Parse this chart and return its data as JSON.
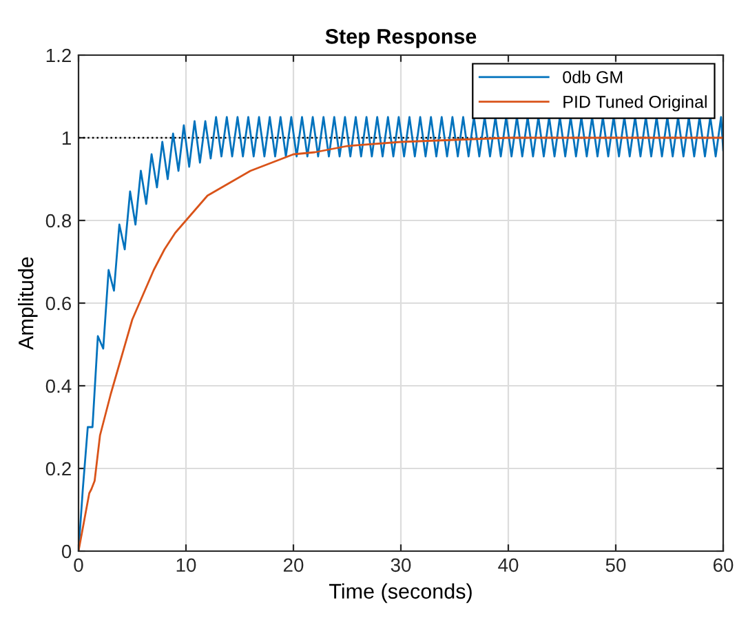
{
  "chart_data": {
    "type": "line",
    "title": "Step Response",
    "xlabel": "Time (seconds)",
    "ylabel": "Amplitude",
    "xlim": [
      0,
      60
    ],
    "xticks": [
      0,
      10,
      20,
      30,
      40,
      50,
      60
    ],
    "ylim": [
      0,
      1.2
    ],
    "yticks": [
      0,
      0.2,
      0.4,
      0.6,
      0.8,
      1,
      1.2
    ],
    "grid": true,
    "legend": "top right",
    "line_style": "solid",
    "ref_lines": [
      {
        "axis": "y",
        "value": 1,
        "color": "#000000",
        "line_style": "dotted"
      }
    ],
    "series": [
      {
        "name": "0db GM",
        "color": "#0072bd",
        "x": [
          0,
          0.4,
          0.86,
          1.3,
          1.8,
          2.3,
          2.8,
          3.3,
          3.8,
          4.3,
          4.8,
          5.3,
          5.8,
          6.3,
          6.8,
          7.3,
          7.8,
          8.3,
          8.8,
          9.3,
          9.8,
          10.3,
          10.8,
          11.3,
          11.8,
          12.3,
          12.8,
          13.3,
          13.8,
          14.3,
          14.8,
          15.3,
          15.8,
          16.3,
          16.8,
          17.3,
          17.8,
          18.3,
          18.8,
          19.3,
          19.8,
          20.3,
          20.8,
          21.3,
          21.8,
          22.3,
          22.8,
          23.3,
          23.8,
          24.3,
          24.8,
          25.3,
          25.8,
          26.3,
          26.8,
          27.3,
          27.8,
          28.3,
          28.8,
          29.3,
          29.8,
          30.3,
          30.8,
          31.3,
          31.8,
          32.3,
          32.8,
          33.3,
          33.8,
          34.3,
          34.8,
          35.3,
          35.8,
          36.3,
          36.8,
          37.3,
          37.8,
          38.3,
          38.8,
          39.3,
          39.8,
          40.3,
          40.8,
          41.3,
          41.8,
          42.3,
          42.8,
          43.3,
          43.8,
          44.3,
          44.8,
          45.3,
          45.8,
          46.3,
          46.8,
          47.3,
          47.8,
          48.3,
          48.8,
          49.3,
          49.8,
          50.3,
          50.8,
          51.3,
          51.8,
          52.3,
          52.8,
          53.3,
          53.8,
          54.3,
          54.8,
          55.3,
          55.8,
          56.3,
          56.8,
          57.3,
          57.8,
          58.3,
          58.8,
          59.3,
          59.8,
          60
        ],
        "values": [
          0,
          0.15,
          0.3,
          0.3,
          0.52,
          0.49,
          0.68,
          0.63,
          0.79,
          0.73,
          0.87,
          0.79,
          0.92,
          0.84,
          0.96,
          0.88,
          0.99,
          0.9,
          1.01,
          0.92,
          1.03,
          0.93,
          1.04,
          0.94,
          1.04,
          0.95,
          1.05,
          0.955,
          1.05,
          0.955,
          1.05,
          0.955,
          1.05,
          0.955,
          1.05,
          0.955,
          1.05,
          0.955,
          1.05,
          0.955,
          1.05,
          0.955,
          1.05,
          0.955,
          1.05,
          0.955,
          1.05,
          0.955,
          1.05,
          0.955,
          1.05,
          0.955,
          1.05,
          0.955,
          1.05,
          0.955,
          1.05,
          0.955,
          1.05,
          0.955,
          1.05,
          0.955,
          1.05,
          0.955,
          1.05,
          0.955,
          1.05,
          0.955,
          1.05,
          0.955,
          1.05,
          0.955,
          1.05,
          0.955,
          1.05,
          0.955,
          1.05,
          0.955,
          1.05,
          0.955,
          1.05,
          0.955,
          1.05,
          0.955,
          1.05,
          0.955,
          1.05,
          0.955,
          1.05,
          0.955,
          1.05,
          0.955,
          1.05,
          0.955,
          1.05,
          0.955,
          1.05,
          0.955,
          1.05,
          0.955,
          1.05,
          0.955,
          1.05,
          0.955,
          1.05,
          0.955,
          1.05,
          0.955,
          1.05,
          0.955,
          1.05,
          0.955,
          1.05,
          0.955,
          1.05,
          0.955,
          1.05,
          0.955,
          1.05,
          0.955,
          1.05,
          0.97
        ]
      },
      {
        "name": "PID Tuned Original",
        "color": "#d95319",
        "x": [
          0,
          0.5,
          1,
          1.2,
          1.5,
          2,
          3,
          4,
          5,
          6,
          7,
          8,
          9,
          10,
          12,
          14,
          16,
          18,
          20,
          22,
          25,
          30,
          35,
          40,
          50,
          60
        ],
        "values": [
          0,
          0.07,
          0.14,
          0.15,
          0.17,
          0.28,
          0.38,
          0.47,
          0.56,
          0.62,
          0.68,
          0.73,
          0.77,
          0.8,
          0.86,
          0.89,
          0.92,
          0.94,
          0.96,
          0.965,
          0.98,
          0.99,
          0.995,
          1,
          1,
          1
        ]
      }
    ]
  }
}
